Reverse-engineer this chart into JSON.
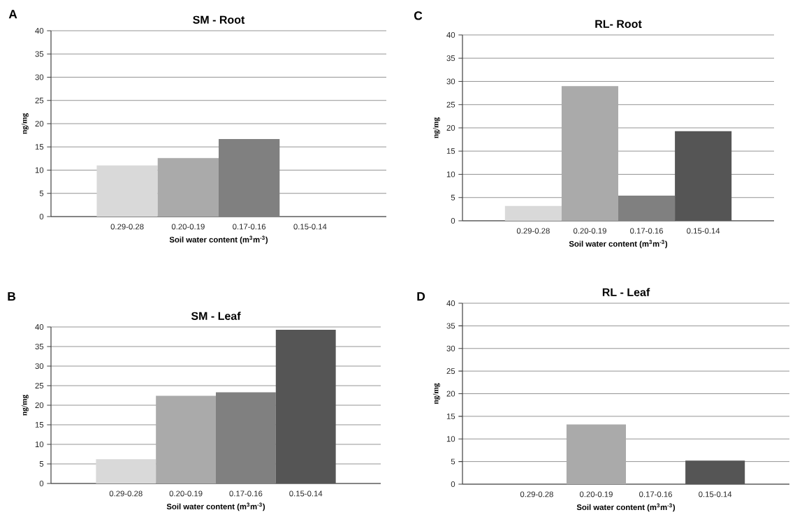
{
  "chart_data": [
    {
      "type": "bar",
      "title": "SM - Root",
      "xlabel": "Soil water content (m$^{3}$m$^{-3}$)",
      "ylabel": "ng/mg",
      "categories": [
        "0.29-0.28",
        "0.20-0.19",
        "0.17-0.16",
        "0.15-0.14"
      ],
      "values": [
        11,
        12.6,
        16.7,
        null
      ],
      "colors": [
        "#d9d9d9",
        "#aaaaaa",
        "#808080",
        "#555555"
      ],
      "ylim": [
        0,
        40
      ],
      "yticks": [
        0,
        5,
        10,
        15,
        20,
        25,
        30,
        35,
        40
      ],
      "grid": "y",
      "annotations": [
        "A"
      ]
    },
    {
      "type": "bar",
      "title": "RL- Root",
      "xlabel": "Soil water content (m$^{3}$m$^{-3}$)",
      "ylabel": "ng/mg",
      "categories": [
        "0.29-0.28",
        "0.20-0.19",
        "0.17-0.16",
        "0.15-0.14"
      ],
      "values": [
        3.2,
        29,
        5.4,
        19.3
      ],
      "colors": [
        "#d9d9d9",
        "#aaaaaa",
        "#808080",
        "#555555"
      ],
      "ylim": [
        0,
        40
      ],
      "yticks": [
        0,
        5,
        10,
        15,
        20,
        25,
        30,
        35,
        40
      ],
      "grid": "y",
      "annotations": [
        "C"
      ]
    },
    {
      "type": "bar",
      "title": "SM - Leaf",
      "xlabel": "Soil water content (m$^{3}$m$^{-3}$)",
      "ylabel": "ng/mg",
      "categories": [
        "0.29-0.28",
        "0.20-0.19",
        "0.17-0.16",
        "0.15-0.14"
      ],
      "values": [
        6.2,
        22.4,
        23.3,
        39.3
      ],
      "colors": [
        "#d9d9d9",
        "#aaaaaa",
        "#808080",
        "#555555"
      ],
      "ylim": [
        0,
        40
      ],
      "yticks": [
        0,
        5,
        10,
        15,
        20,
        25,
        30,
        35,
        40
      ],
      "grid": "y",
      "annotations": [
        "B"
      ]
    },
    {
      "type": "bar",
      "title": "RL - Leaf",
      "xlabel": "Soil water content (m$^{3}$m$^{-3}$)",
      "ylabel": "ng/mg",
      "categories": [
        "0.29-0.28",
        "0.20-0.19",
        "0.17-0.16",
        "0.15-0.14"
      ],
      "values": [
        null,
        13.2,
        null,
        5.2
      ],
      "colors": [
        "#d9d9d9",
        "#aaaaaa",
        "#808080",
        "#555555"
      ],
      "ylim": [
        0,
        40
      ],
      "yticks": [
        0,
        5,
        10,
        15,
        20,
        25,
        30,
        35,
        40
      ],
      "grid": "y",
      "annotations": [
        "D"
      ]
    }
  ]
}
